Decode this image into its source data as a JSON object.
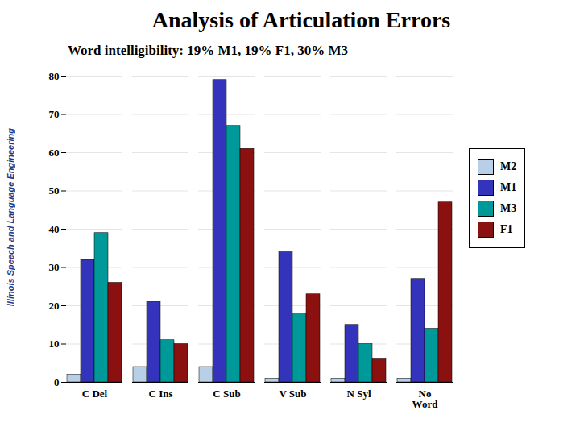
{
  "chart_data": {
    "type": "bar",
    "title": "Analysis of Articulation Errors",
    "subtitle": "Word intelligibility: 19% M1, 19% F1, 30% M3",
    "annotations": [
      {
        "text": "Illinois Speech and Language Engineering",
        "color": "#1a3a8a"
      }
    ],
    "categories": [
      "C Del",
      "C Ins",
      "C Sub",
      "V Sub",
      "N Syl",
      "No\nWord"
    ],
    "series": [
      {
        "name": "M2",
        "color": "#b8cfe8",
        "values": [
          2,
          4,
          4,
          1,
          1,
          1
        ]
      },
      {
        "name": "M1",
        "color": "#3333bb",
        "values": [
          32,
          21,
          79,
          34,
          15,
          27
        ]
      },
      {
        "name": "M3",
        "color": "#009999",
        "values": [
          39,
          11,
          67,
          18,
          10,
          14
        ]
      },
      {
        "name": "F1",
        "color": "#8b1010",
        "values": [
          26,
          10,
          61,
          23,
          6,
          47
        ]
      }
    ],
    "ylim": [
      0,
      80
    ],
    "yticks": [
      0,
      10,
      20,
      30,
      40,
      50,
      60,
      70,
      80
    ],
    "grid": true,
    "legend": "right"
  }
}
